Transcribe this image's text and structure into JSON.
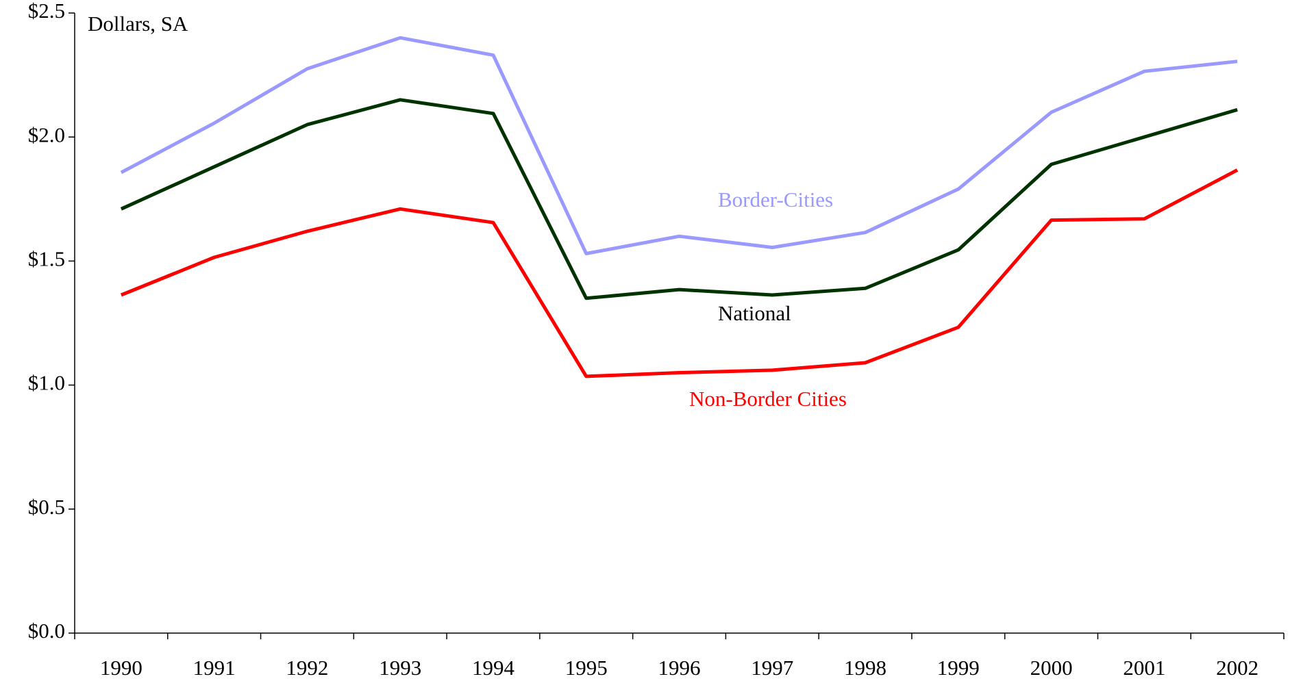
{
  "chart_data": {
    "type": "line",
    "annotation": "Dollars, SA",
    "categories": [
      "1990",
      "1991",
      "1992",
      "1993",
      "1994",
      "1995",
      "1996",
      "1997",
      "1998",
      "1999",
      "2000",
      "2001",
      "2002"
    ],
    "series": [
      {
        "name": "Border-Cities",
        "color": "#9999ff",
        "values": [
          1.857,
          2.056,
          2.275,
          2.4,
          2.33,
          1.53,
          1.6,
          1.555,
          1.615,
          1.79,
          2.1,
          2.265,
          2.305
        ]
      },
      {
        "name": "National",
        "color": "#003300",
        "values": [
          1.71,
          1.88,
          2.05,
          2.15,
          2.095,
          1.35,
          1.385,
          1.363,
          1.39,
          1.545,
          1.89,
          2.0,
          2.11
        ]
      },
      {
        "name": "Non-Border Cities",
        "color": "#ff0000",
        "values": [
          1.363,
          1.515,
          1.62,
          1.71,
          1.655,
          1.035,
          1.05,
          1.06,
          1.09,
          1.233,
          1.665,
          1.67,
          1.867
        ]
      }
    ],
    "ylim": [
      0,
      2.5
    ],
    "yticks": [
      {
        "value": 0,
        "label": "$0.0"
      },
      {
        "value": 0.5,
        "label": "$0.5"
      },
      {
        "value": 1.0,
        "label": "$1.0"
      },
      {
        "value": 1.5,
        "label": "$1.5"
      },
      {
        "value": 2.0,
        "label": "$2.0"
      },
      {
        "value": 2.5,
        "label": "$2.5"
      }
    ],
    "grid": false
  }
}
